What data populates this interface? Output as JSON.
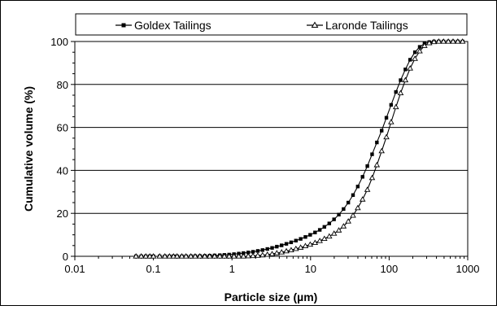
{
  "chart_data": {
    "type": "line",
    "title": "",
    "xlabel": "Particle size (µm)",
    "ylabel": "Cumulative volume (%)",
    "x_scale": "log",
    "xlim": [
      0.01,
      1000
    ],
    "ylim": [
      0,
      100
    ],
    "x_ticks": [
      "0.01",
      "0.1",
      "1",
      "10",
      "100",
      "1000"
    ],
    "y_ticks": [
      "0",
      "20",
      "40",
      "60",
      "80",
      "100"
    ],
    "grid": "horizontal",
    "legend_position": "top",
    "x": [
      0.06,
      0.07,
      0.08,
      0.09,
      0.1,
      0.12,
      0.14,
      0.16,
      0.18,
      0.2,
      0.23,
      0.26,
      0.3,
      0.34,
      0.39,
      0.45,
      0.52,
      0.6,
      0.7,
      0.8,
      0.92,
      1.06,
      1.22,
      1.4,
      1.61,
      1.85,
      2.13,
      2.45,
      2.82,
      3.24,
      3.72,
      4.28,
      4.92,
      5.66,
      6.51,
      7.48,
      8.6,
      9.89,
      11.4,
      13.1,
      15.0,
      17.3,
      19.9,
      22.9,
      26.3,
      30.2,
      34.7,
      39.9,
      45.9,
      52.8,
      60.7,
      69.8,
      80.3,
      92.3,
      106,
      122,
      140,
      161,
      185,
      213,
      245,
      282,
      324,
      372,
      428,
      492,
      566,
      651,
      748,
      860
    ],
    "series": [
      {
        "name": "Goldex Tailings",
        "marker": "square",
        "color": "#000000",
        "values": [
          0,
          0,
          0,
          0,
          0,
          0,
          0,
          0,
          0,
          0,
          0,
          0,
          0.05,
          0.1,
          0.15,
          0.2,
          0.3,
          0.4,
          0.5,
          0.65,
          0.8,
          1.0,
          1.25,
          1.5,
          1.8,
          2.1,
          2.5,
          2.9,
          3.4,
          3.9,
          4.5,
          5.1,
          5.8,
          6.5,
          7.3,
          8.1,
          9.0,
          10.0,
          11.1,
          12.3,
          13.7,
          15.3,
          17.2,
          19.4,
          22.0,
          25.0,
          28.5,
          32.5,
          37.0,
          42.0,
          47.5,
          53.0,
          58.5,
          64.5,
          70.5,
          76.5,
          82.0,
          87.0,
          91.5,
          95.0,
          97.5,
          99.0,
          99.7,
          100,
          100,
          100,
          100,
          100,
          100,
          100
        ]
      },
      {
        "name": "Laronde Tailings",
        "marker": "triangle",
        "color": "#000000",
        "values": [
          0,
          0,
          0,
          0,
          0,
          0,
          0,
          0,
          0,
          0,
          0,
          0,
          0,
          0,
          0,
          0,
          0,
          0,
          0,
          0,
          0,
          0,
          0,
          0,
          0.1,
          0.2,
          0.35,
          0.55,
          0.8,
          1.1,
          1.5,
          1.9,
          2.4,
          2.9,
          3.5,
          4.1,
          4.8,
          5.5,
          6.3,
          7.2,
          8.2,
          9.3,
          10.6,
          12.1,
          14.0,
          16.3,
          19.0,
          22.5,
          26.5,
          31.0,
          36.5,
          42.5,
          49.0,
          55.5,
          62.5,
          69.5,
          76.0,
          82.0,
          87.5,
          92.0,
          95.5,
          98.0,
          99.3,
          99.8,
          100,
          100,
          100,
          100,
          100,
          100
        ]
      }
    ]
  }
}
